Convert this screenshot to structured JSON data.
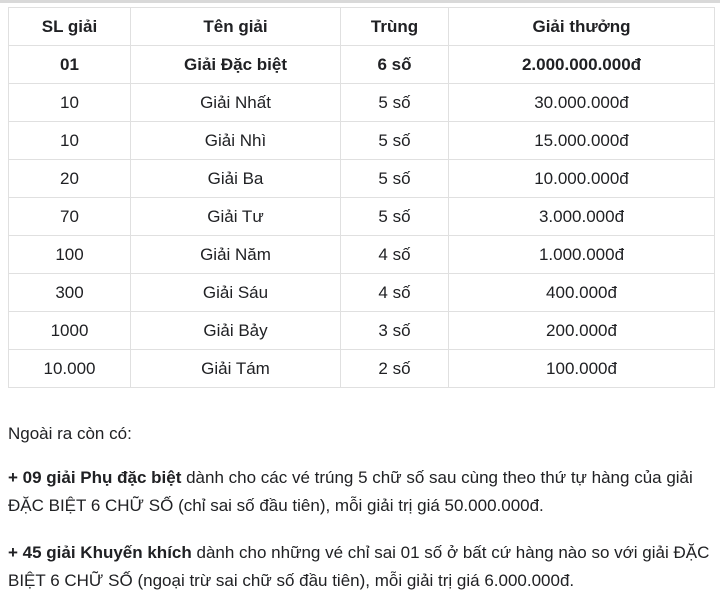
{
  "colors": {
    "background": "#ffffff",
    "text": "#202124",
    "table_border": "#e0e0e0",
    "top_strip": "#d9d9d9"
  },
  "table": {
    "headers": [
      "SL giải",
      "Tên giải",
      "Trùng",
      "Giải thưởng"
    ],
    "rows": [
      {
        "bold": true,
        "cells": [
          "01",
          "Giải Đặc biệt",
          "6 số",
          "2.000.000.000đ"
        ]
      },
      {
        "bold": false,
        "cells": [
          "10",
          "Giải Nhất",
          "5 số",
          "30.000.000đ"
        ]
      },
      {
        "bold": false,
        "cells": [
          "10",
          "Giải Nhì",
          "5 số",
          "15.000.000đ"
        ]
      },
      {
        "bold": false,
        "cells": [
          "20",
          "Giải Ba",
          "5 số",
          "10.000.000đ"
        ]
      },
      {
        "bold": false,
        "cells": [
          "70",
          "Giải Tư",
          "5 số",
          "3.000.000đ"
        ]
      },
      {
        "bold": false,
        "cells": [
          "100",
          "Giải Năm",
          "4 số",
          "1.000.000đ"
        ]
      },
      {
        "bold": false,
        "cells": [
          "300",
          "Giải Sáu",
          "4 số",
          "400.000đ"
        ]
      },
      {
        "bold": false,
        "cells": [
          "1000",
          "Giải Bảy",
          "3 số",
          "200.000đ"
        ]
      },
      {
        "bold": false,
        "cells": [
          "10.000",
          "Giải Tám",
          "2 số",
          "100.000đ"
        ]
      }
    ]
  },
  "notes": {
    "intro": "Ngoài ra còn có:",
    "items": [
      {
        "bold_lead": "+ 09 giải Phụ đặc biệt",
        "rest": " dành cho các vé trúng 5 chữ số sau cùng theo thứ tự hàng của giải ĐẶC BIỆT 6 CHỮ SỐ (chỉ sai số đầu tiên), mỗi giải trị giá 50.000.000đ."
      },
      {
        "bold_lead": "+ 45 giải Khuyến khích",
        "rest": " dành cho những vé chỉ sai 01 số ở bất cứ hàng nào so với giải ĐẶC BIỆT 6 CHỮ SỐ (ngoại trừ sai chữ số đầu tiên), mỗi giải trị giá 6.000.000đ."
      }
    ]
  }
}
